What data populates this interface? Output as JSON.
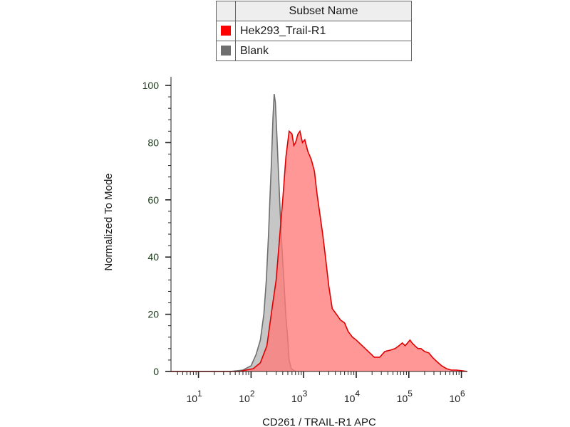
{
  "legend": {
    "header": "Subset Name",
    "rows": [
      {
        "label": "Hek293_Trail-R1",
        "color": "#ff0000"
      },
      {
        "label": "Blank",
        "color": "#6e6e6e"
      }
    ]
  },
  "chart_data": {
    "type": "area",
    "title": "",
    "xlabel": "CD261 / TRAIL-R1 APC",
    "ylabel": "Normalized To Mode",
    "x_scale": "log",
    "xlim": [
      3,
      1300000
    ],
    "ylim": [
      0,
      100
    ],
    "y_ticks": [
      0,
      20,
      40,
      60,
      80,
      100
    ],
    "x_ticks": [
      {
        "value": 10,
        "base": "10",
        "exp": "1"
      },
      {
        "value": 100,
        "base": "10",
        "exp": "2"
      },
      {
        "value": 1000,
        "base": "10",
        "exp": "3"
      },
      {
        "value": 10000,
        "base": "10",
        "exp": "4"
      },
      {
        "value": 100000,
        "base": "10",
        "exp": "5"
      },
      {
        "value": 1000000,
        "base": "10",
        "exp": "6"
      }
    ],
    "series": [
      {
        "name": "Blank",
        "stroke": "#6e6e6e",
        "fill": "#c6c6c6",
        "points": [
          [
            3,
            0
          ],
          [
            40,
            0
          ],
          [
            70,
            0.5
          ],
          [
            100,
            2
          ],
          [
            125,
            6
          ],
          [
            150,
            11
          ],
          [
            175,
            20
          ],
          [
            195,
            32
          ],
          [
            215,
            48
          ],
          [
            230,
            62
          ],
          [
            245,
            74
          ],
          [
            260,
            88
          ],
          [
            275,
            97
          ],
          [
            290,
            94
          ],
          [
            310,
            82
          ],
          [
            335,
            68
          ],
          [
            360,
            55
          ],
          [
            390,
            42
          ],
          [
            420,
            32
          ],
          [
            455,
            20
          ],
          [
            495,
            12
          ],
          [
            530,
            4
          ],
          [
            580,
            1
          ],
          [
            700,
            0
          ]
        ]
      },
      {
        "name": "Hek293_Trail-R1",
        "stroke": "#e00000",
        "fill": "#ff7a7a",
        "points": [
          [
            3,
            0
          ],
          [
            60,
            0
          ],
          [
            80,
            0.5
          ],
          [
            110,
            1
          ],
          [
            150,
            3
          ],
          [
            200,
            9
          ],
          [
            250,
            22
          ],
          [
            300,
            32
          ],
          [
            350,
            47
          ],
          [
            400,
            60
          ],
          [
            460,
            75
          ],
          [
            530,
            84
          ],
          [
            600,
            83
          ],
          [
            650,
            79
          ],
          [
            700,
            80
          ],
          [
            780,
            83
          ],
          [
            850,
            84
          ],
          [
            950,
            80
          ],
          [
            1050,
            81
          ],
          [
            1200,
            77
          ],
          [
            1400,
            74
          ],
          [
            1600,
            70
          ],
          [
            1800,
            62
          ],
          [
            2000,
            56
          ],
          [
            2300,
            48
          ],
          [
            2600,
            40
          ],
          [
            3000,
            30
          ],
          [
            3500,
            22
          ],
          [
            4200,
            20
          ],
          [
            5000,
            18
          ],
          [
            6000,
            17
          ],
          [
            7000,
            14
          ],
          [
            8500,
            12
          ],
          [
            10000,
            11
          ],
          [
            13000,
            9
          ],
          [
            17000,
            7
          ],
          [
            22000,
            5
          ],
          [
            28000,
            5
          ],
          [
            35000,
            7
          ],
          [
            45000,
            7.5
          ],
          [
            55000,
            8
          ],
          [
            65000,
            9
          ],
          [
            75000,
            10
          ],
          [
            85000,
            9
          ],
          [
            95000,
            10
          ],
          [
            105000,
            11
          ],
          [
            115000,
            10
          ],
          [
            130000,
            9
          ],
          [
            150000,
            8
          ],
          [
            170000,
            8
          ],
          [
            200000,
            7
          ],
          [
            240000,
            6.5
          ],
          [
            280000,
            5
          ],
          [
            340000,
            3.5
          ],
          [
            420000,
            2
          ],
          [
            520000,
            1
          ],
          [
            640000,
            0.5
          ],
          [
            800000,
            0.5
          ],
          [
            1000000,
            0.3
          ],
          [
            1300000,
            0
          ]
        ]
      }
    ]
  }
}
